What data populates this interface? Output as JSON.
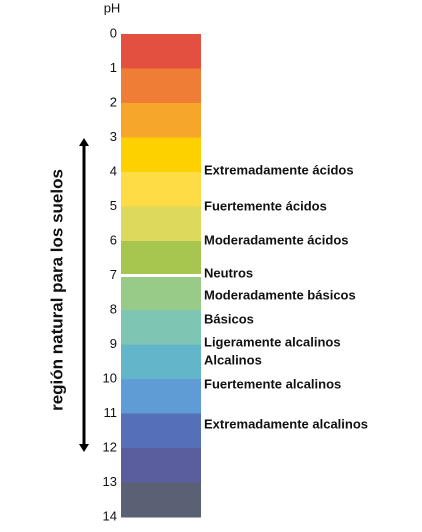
{
  "axis_label": "pH",
  "ticks": [
    0,
    1,
    2,
    3,
    4,
    5,
    6,
    7,
    8,
    9,
    10,
    11,
    12,
    13,
    14
  ],
  "band_colors": [
    "#e4503f",
    "#ef7d36",
    "#f6a62b",
    "#fdd000",
    "#fddc45",
    "#dcd95c",
    "#a6c64f",
    "#98cb87",
    "#7ec6b3",
    "#63b6ca",
    "#5f9bd4",
    "#5670b8",
    "#5a5e9e",
    "#5b6174"
  ],
  "side_label": "región natural para los suelos",
  "labels": [
    "Extremadamente ácidos",
    "Fuertemente ácidos",
    "Moderadamente ácidos",
    "Neutros",
    "Moderadamente básicos",
    "Básicos",
    "Ligeramente alcalinos",
    "Alcalinos",
    "Fuertemente alcalinos",
    "Extremadamente alcalinos"
  ]
}
